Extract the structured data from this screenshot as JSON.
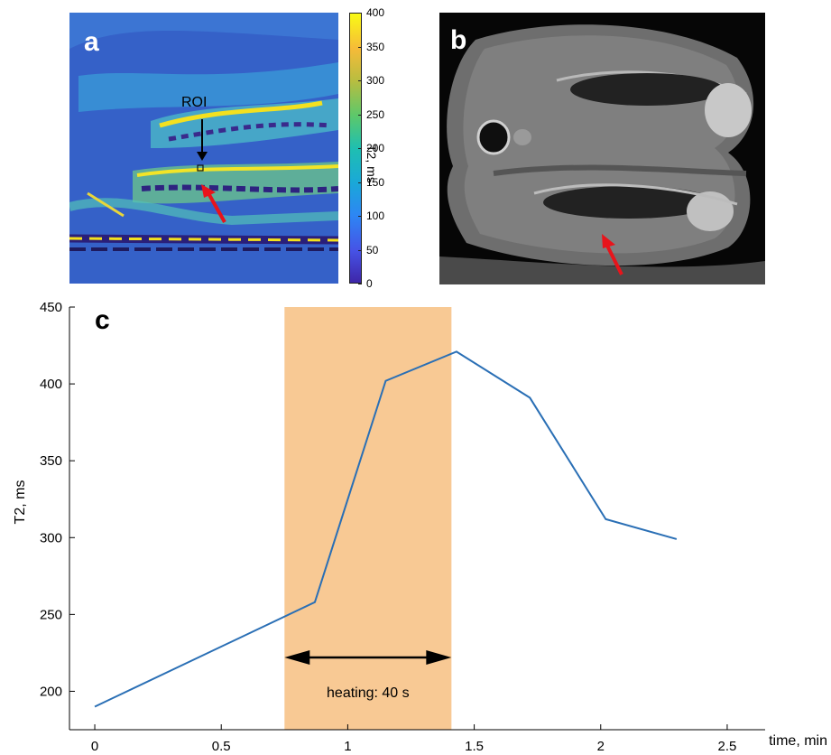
{
  "panel_a": {
    "label": "a",
    "roi_label": "ROI",
    "colorbar": {
      "label": "T2, ms",
      "ticks": [
        "0",
        "50",
        "100",
        "150",
        "200",
        "250",
        "300",
        "350",
        "400"
      ],
      "range": [
        0,
        400
      ]
    }
  },
  "panel_b": {
    "label": "b"
  },
  "panel_c": {
    "label": "c"
  },
  "chart_data": {
    "type": "line",
    "xlabel": "time, min",
    "ylabel": "T2, ms",
    "xlim": [
      -0.1,
      2.65
    ],
    "ylim": [
      175,
      450
    ],
    "xticks": [
      "0",
      "0.5",
      "1",
      "1.5",
      "2",
      "2.5"
    ],
    "yticks": [
      "200",
      "250",
      "300",
      "350",
      "400",
      "450"
    ],
    "series": [
      {
        "color": "#2a6fb5",
        "x": [
          0,
          0.87,
          1.15,
          1.43,
          1.72,
          2.02,
          2.3
        ],
        "y": [
          190,
          258,
          402,
          421,
          391,
          312,
          299
        ]
      }
    ],
    "shaded_region": {
      "x_range": [
        0.75,
        1.41
      ],
      "color": "#f8c994",
      "label": "heating: 40 s"
    },
    "grid": false
  }
}
